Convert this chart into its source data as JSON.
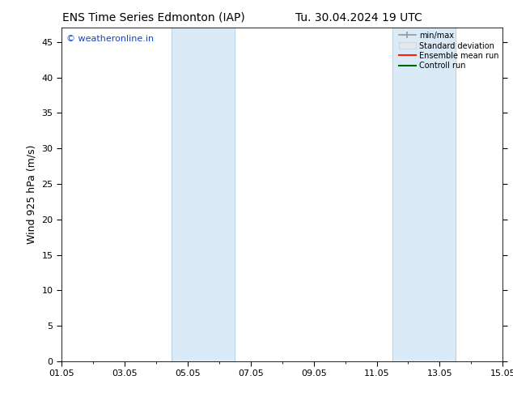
{
  "title_left": "ENS Time Series Edmonton (IAP)",
  "title_right": "Tu. 30.04.2024 19 UTC",
  "ylabel": "Wind 925 hPa (m/s)",
  "ylim": [
    0,
    47
  ],
  "yticks": [
    0,
    5,
    10,
    15,
    20,
    25,
    30,
    35,
    40,
    45
  ],
  "xtick_labels": [
    "01.05",
    "03.05",
    "05.05",
    "07.05",
    "09.05",
    "11.05",
    "13.05",
    "15.05"
  ],
  "xtick_positions": [
    0,
    2,
    4,
    6,
    8,
    10,
    12,
    14
  ],
  "xlim": [
    0,
    14
  ],
  "shaded_bands": [
    {
      "x_start": 3.5,
      "x_end": 5.5
    },
    {
      "x_start": 10.5,
      "x_end": 12.5
    }
  ],
  "shaded_color": "#daeaf7",
  "band_edge_color": "#b8d4e8",
  "background_color": "#ffffff",
  "plot_bg_color": "#ffffff",
  "watermark_text": "© weatheronline.in",
  "watermark_color": "#1144cc",
  "legend_items": [
    {
      "label": "min/max"
    },
    {
      "label": "Standard deviation"
    },
    {
      "label": "Ensemble mean run"
    },
    {
      "label": "Controll run"
    }
  ],
  "legend_colors": [
    "#999999",
    "#cccccc",
    "#ff2200",
    "#006600"
  ],
  "title_fontsize": 10,
  "label_fontsize": 9,
  "tick_fontsize": 8,
  "watermark_fontsize": 8
}
